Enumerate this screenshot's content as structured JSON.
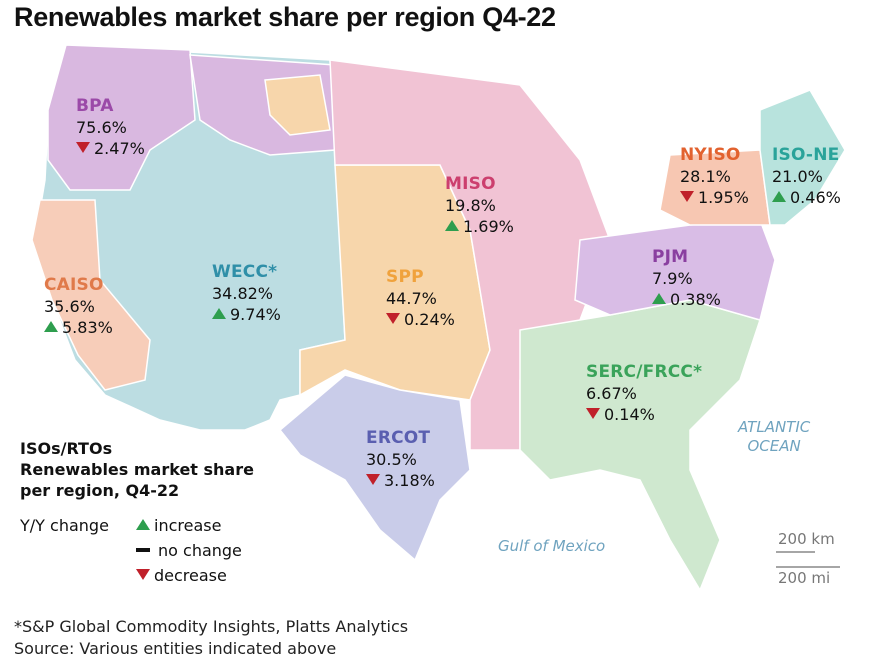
{
  "title": "Renewables market share per region Q4-22",
  "colors": {
    "increase": "#2e9e4e",
    "decrease": "#c0202a",
    "no_change": "#111111",
    "water_text": "#6fa3bf",
    "background": "#ffffff"
  },
  "regions": [
    {
      "name": "BPA",
      "share": "75.6%",
      "change": "2.47%",
      "direction": "decrease",
      "color": "#9b4aa8",
      "fill": "#d9b8e0"
    },
    {
      "name": "CAISO",
      "share": "35.6%",
      "change": "5.83%",
      "direction": "increase",
      "color": "#e07a4a",
      "fill": "#f7cdb9"
    },
    {
      "name": "WECC*",
      "share": "34.82%",
      "change": "9.74%",
      "direction": "increase",
      "color": "#2f8fa8",
      "fill": "#bcdde2"
    },
    {
      "name": "SPP",
      "share": "44.7%",
      "change": "0.24%",
      "direction": "decrease",
      "color": "#f0a23c",
      "fill": "#f7d6ab"
    },
    {
      "name": "MISO",
      "share": "19.8%",
      "change": "1.69%",
      "direction": "increase",
      "color": "#cc3f6e",
      "fill": "#f1c3d4"
    },
    {
      "name": "ERCOT",
      "share": "30.5%",
      "change": "3.18%",
      "direction": "decrease",
      "color": "#5a5fb0",
      "fill": "#c9cce9"
    },
    {
      "name": "NYISO",
      "share": "28.1%",
      "change": "1.95%",
      "direction": "decrease",
      "color": "#e2622f",
      "fill": "#f7c7b2"
    },
    {
      "name": "ISO-NE",
      "share": "21.0%",
      "change": "0.46%",
      "direction": "increase",
      "color": "#2aa39a",
      "fill": "#b8e3dd"
    },
    {
      "name": "PJM",
      "share": "7.9%",
      "change": "0.38%",
      "direction": "increase",
      "color": "#8a3fa0",
      "fill": "#d9bde6"
    },
    {
      "name": "SERC/FRCC*",
      "share": "6.67%",
      "change": "0.14%",
      "direction": "decrease",
      "color": "#3aa35a",
      "fill": "#cfe8cf"
    }
  ],
  "legend": {
    "title_lines": [
      "ISOs/RTOs",
      "Renewables market share",
      "per region, Q4-22"
    ],
    "yoy_label": "Y/Y change",
    "items": [
      {
        "label": "increase",
        "symbol": "up-triangle-icon"
      },
      {
        "label": "no change",
        "symbol": "dash-icon"
      },
      {
        "label": "decrease",
        "symbol": "down-triangle-icon"
      }
    ]
  },
  "water_labels": {
    "atlantic": "ATLANTIC\nOCEAN",
    "gulf": "Gulf of Mexico"
  },
  "scale": {
    "km": "200 km",
    "mi": "200 mi"
  },
  "footnote": "*S&P Global Commodity Insights, Platts Analytics",
  "source": "Source: Various entities indicated above"
}
